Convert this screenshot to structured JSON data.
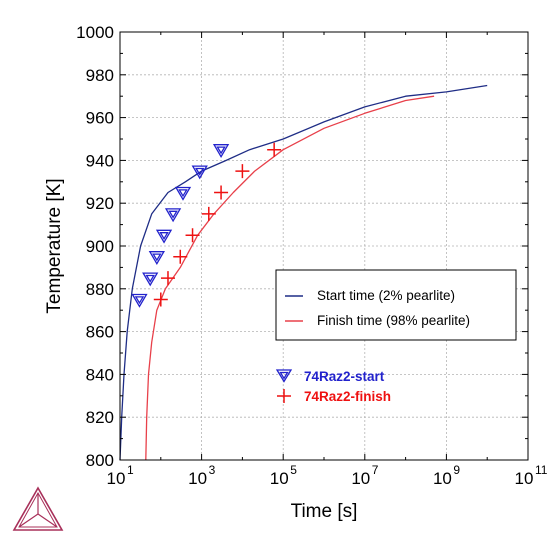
{
  "chart_data": {
    "type": "line",
    "xlabel": "Time [s]",
    "ylabel": "Temperature [K]",
    "x_scale": "log",
    "xlim": [
      10,
      100000000000
    ],
    "ylim": [
      800,
      1000
    ],
    "x_ticks": [
      {
        "value": 10,
        "base": "10",
        "exp": "1"
      },
      {
        "value": 1000,
        "base": "10",
        "exp": "3"
      },
      {
        "value": 100000,
        "base": "10",
        "exp": "5"
      },
      {
        "value": 10000000,
        "base": "10",
        "exp": "7"
      },
      {
        "value": 1000000000,
        "base": "10",
        "exp": "9"
      },
      {
        "value": 100000000000,
        "base": "10",
        "exp": "11"
      }
    ],
    "y_ticks": [
      800,
      820,
      840,
      860,
      880,
      900,
      920,
      940,
      960,
      980,
      1000
    ],
    "y_tick_labels": [
      "800",
      "820",
      "840",
      "860",
      "880",
      "900",
      "920",
      "940",
      "960",
      "980",
      "1000"
    ],
    "grid": true,
    "legend_position": "center-right",
    "series": [
      {
        "name": "Start time (2% pearlite)",
        "kind": "line",
        "color": "#1f2d86",
        "points": [
          [
            10,
            800
          ],
          [
            11,
            820
          ],
          [
            12.5,
            840
          ],
          [
            15,
            860
          ],
          [
            20,
            880
          ],
          [
            32,
            900
          ],
          [
            60,
            915
          ],
          [
            150,
            925
          ],
          [
            400,
            930
          ],
          [
            1000,
            935
          ],
          [
            4000,
            940
          ],
          [
            15000,
            945
          ],
          [
            100000,
            950
          ],
          [
            1000000,
            958
          ],
          [
            10000000,
            965
          ],
          [
            100000000,
            970
          ],
          [
            1000000000,
            972
          ],
          [
            10000000000,
            975
          ]
        ]
      },
      {
        "name": "Finish time (98% pearlite)",
        "kind": "line",
        "color": "#e8404a",
        "points": [
          [
            43,
            800
          ],
          [
            45,
            820
          ],
          [
            50,
            840
          ],
          [
            60,
            855
          ],
          [
            80,
            870
          ],
          [
            130,
            880
          ],
          [
            300,
            890
          ],
          [
            800,
            905
          ],
          [
            2000,
            915
          ],
          [
            6000,
            925
          ],
          [
            20000,
            935
          ],
          [
            100000,
            945
          ],
          [
            1000000,
            955
          ],
          [
            10000000,
            962
          ],
          [
            100000000,
            968
          ],
          [
            500000000,
            970
          ]
        ]
      },
      {
        "name": "74Raz2-start",
        "kind": "marker",
        "marker": "triangle-down",
        "color": "#2222cc",
        "points": [
          [
            30,
            875
          ],
          [
            55,
            885
          ],
          [
            80,
            895
          ],
          [
            120,
            905
          ],
          [
            200,
            915
          ],
          [
            350,
            925
          ],
          [
            900,
            935
          ],
          [
            3000,
            945
          ]
        ]
      },
      {
        "name": "74Raz2-finish",
        "kind": "marker",
        "marker": "plus",
        "color": "#ee1111",
        "points": [
          [
            100,
            875
          ],
          [
            150,
            885
          ],
          [
            300,
            895
          ],
          [
            600,
            905
          ],
          [
            1500,
            915
          ],
          [
            3000,
            925
          ],
          [
            10000,
            935
          ],
          [
            60000,
            945
          ]
        ]
      }
    ]
  },
  "legend": {
    "line_items": [
      "Start time (2% pearlite)",
      "Finish time (98% pearlite)"
    ],
    "marker_items": [
      "74Raz2-start",
      "74Raz2-finish"
    ]
  },
  "logo": {
    "name": "thermo-calc-logo-icon",
    "color": "#a8305a"
  }
}
